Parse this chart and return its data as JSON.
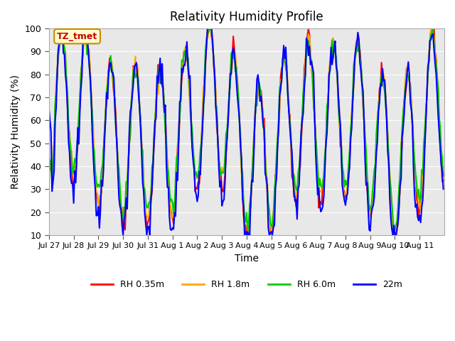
{
  "title": "Relativity Humidity Profile",
  "xlabel": "Time",
  "ylabel": "Relativity Humidity (%)",
  "ylim": [
    10,
    100
  ],
  "yticks": [
    10,
    20,
    30,
    40,
    50,
    60,
    70,
    80,
    90,
    100
  ],
  "xtick_labels": [
    "Jul 27",
    "Jul 28",
    "Jul 29",
    "Jul 30",
    "Jul 31",
    "Aug 1",
    "Aug 2",
    "Aug 3",
    "Aug 4",
    "Aug 5",
    "Aug 6",
    "Aug 7",
    "Aug 8",
    "Aug 9",
    "Aug 10",
    "Aug 11"
  ],
  "colors": {
    "RH 0.35m": "#ff0000",
    "RH 1.8m": "#ffa500",
    "RH 6.0m": "#00cc00",
    "22m": "#0000ff"
  },
  "legend_label": "TZ_tmet",
  "bg_color": "#e8e8e8",
  "linewidth": 1.5,
  "annotation_box_color": "#ffffcc",
  "annotation_text_color": "#cc0000",
  "annotation_border_color": "#cc8800"
}
